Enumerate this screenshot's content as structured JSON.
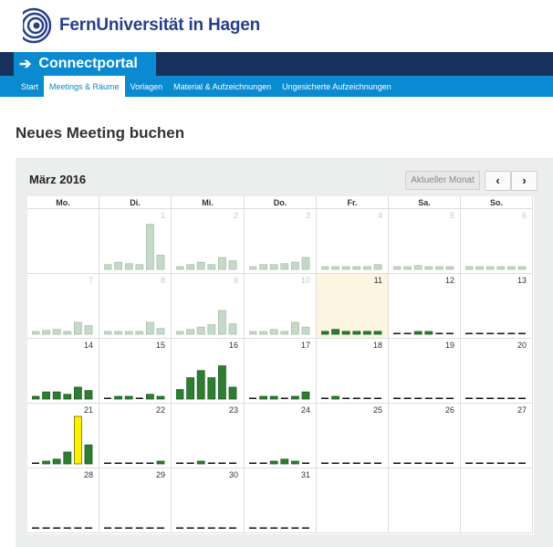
{
  "header": {
    "brand_name": "FernUniversität in Hagen",
    "portal_label": "Connectportal"
  },
  "nav": {
    "items": [
      {
        "label": "Start",
        "active": false
      },
      {
        "label": "Meetings & Räume",
        "active": true
      },
      {
        "label": "Vorlagen",
        "active": false
      },
      {
        "label": "Material & Aufzeichnungen",
        "active": false
      },
      {
        "label": "Ungesicherte Aufzeichnungen",
        "active": false
      }
    ]
  },
  "page": {
    "title": "Neues Meeting buchen"
  },
  "calendar": {
    "month_label": "März 2016",
    "current_month_button": "Aktueller Monat",
    "prev_label": "‹",
    "next_label": "›",
    "weekdays": [
      "Mo.",
      "Di.",
      "Mi.",
      "Do.",
      "Fr.",
      "Sa.",
      "So."
    ],
    "colors": {
      "past_bar": "#c5d9c7",
      "past_border": "#a9bfab",
      "bar": "#2e7d32",
      "bar_border": "#1b5e20",
      "peak_bar": "#fff000",
      "peak_border": "#6b6b00",
      "dash": "#111111"
    },
    "weeks": [
      [
        {
          "num": "",
          "state": "blank",
          "bars": []
        },
        {
          "num": "1",
          "state": "past",
          "bars": [
            0.1,
            0.15,
            0.12,
            0.1,
            0.95,
            0.3
          ]
        },
        {
          "num": "2",
          "state": "past",
          "bars": [
            0.05,
            0.1,
            0.15,
            0.1,
            0.25,
            0.18
          ]
        },
        {
          "num": "3",
          "state": "past",
          "bars": [
            0.05,
            0.1,
            0.1,
            0.12,
            0.15,
            0.25
          ]
        },
        {
          "num": "4",
          "state": "past",
          "bars": [
            0.05,
            0.05,
            0.05,
            0.05,
            0.05,
            0.1
          ]
        },
        {
          "num": "5",
          "state": "past",
          "bars": [
            0.05,
            0.05,
            0.08,
            0.05,
            0.05,
            0.05
          ]
        },
        {
          "num": "6",
          "state": "past",
          "bars": [
            0.05,
            0.05,
            0.05,
            0.05,
            0.05,
            0.05
          ]
        }
      ],
      [
        {
          "num": "7",
          "state": "past",
          "bars": [
            0.05,
            0.08,
            0.1,
            0.05,
            0.25,
            0.18
          ]
        },
        {
          "num": "8",
          "state": "past",
          "bars": [
            0.05,
            0.05,
            0.05,
            0.05,
            0.25,
            0.12
          ]
        },
        {
          "num": "9",
          "state": "past",
          "bars": [
            0.05,
            0.1,
            0.15,
            0.2,
            0.5,
            0.22
          ]
        },
        {
          "num": "10",
          "state": "past",
          "bars": [
            0.05,
            0.05,
            0.1,
            0.05,
            0.25,
            0.15
          ]
        },
        {
          "num": "11",
          "state": "today",
          "bars": [
            0.06,
            0.1,
            0.06,
            0.06,
            0.06,
            0.06
          ]
        },
        {
          "num": "12",
          "state": "future",
          "bars": [
            0,
            0,
            0.05,
            0.05,
            0,
            0
          ]
        },
        {
          "num": "13",
          "state": "future",
          "bars": [
            0,
            0,
            0,
            0,
            0,
            0
          ]
        }
      ],
      [
        {
          "num": "14",
          "state": "future",
          "bars": [
            0.05,
            0.15,
            0.15,
            0.1,
            0.25,
            0.18
          ]
        },
        {
          "num": "15",
          "state": "future",
          "bars": [
            0,
            0.05,
            0.05,
            0,
            0.1,
            0.05
          ]
        },
        {
          "num": "16",
          "state": "future",
          "bars": [
            0.2,
            0.45,
            0.6,
            0.45,
            0.7,
            0.25
          ]
        },
        {
          "num": "17",
          "state": "future",
          "bars": [
            0,
            0.05,
            0.05,
            0,
            0.05,
            0.15
          ]
        },
        {
          "num": "18",
          "state": "future",
          "bars": [
            0,
            0.05,
            0,
            0,
            0,
            0
          ]
        },
        {
          "num": "19",
          "state": "future",
          "bars": [
            0,
            0,
            0,
            0,
            0,
            0
          ]
        },
        {
          "num": "20",
          "state": "future",
          "bars": [
            0,
            0,
            0,
            0,
            0,
            0
          ]
        }
      ],
      [
        {
          "num": "21",
          "state": "future",
          "bars": [
            0,
            0.05,
            0.1,
            0.25,
            1.0,
            0.4
          ],
          "peak_index": 4
        },
        {
          "num": "22",
          "state": "future",
          "bars": [
            0,
            0,
            0,
            0,
            0,
            0.05
          ]
        },
        {
          "num": "23",
          "state": "future",
          "bars": [
            0,
            0,
            0.05,
            0,
            0,
            0
          ]
        },
        {
          "num": "24",
          "state": "future",
          "bars": [
            0,
            0,
            0.05,
            0.1,
            0.05,
            0
          ]
        },
        {
          "num": "25",
          "state": "future",
          "bars": [
            0,
            0,
            0,
            0,
            0,
            0
          ]
        },
        {
          "num": "26",
          "state": "future",
          "bars": [
            0,
            0,
            0,
            0,
            0,
            0
          ]
        },
        {
          "num": "27",
          "state": "future",
          "bars": [
            0,
            0,
            0,
            0,
            0,
            0
          ]
        }
      ],
      [
        {
          "num": "28",
          "state": "future",
          "bars": [
            0,
            0,
            0,
            0,
            0,
            0
          ]
        },
        {
          "num": "29",
          "state": "future",
          "bars": [
            0,
            0,
            0,
            0,
            0,
            0
          ]
        },
        {
          "num": "30",
          "state": "future",
          "bars": [
            0,
            0,
            0,
            0,
            0,
            0
          ]
        },
        {
          "num": "31",
          "state": "future",
          "bars": [
            0,
            0,
            0,
            0,
            0,
            0
          ]
        },
        {
          "num": "",
          "state": "blank",
          "bars": []
        },
        {
          "num": "",
          "state": "blank",
          "bars": []
        },
        {
          "num": "",
          "state": "blank",
          "bars": []
        }
      ]
    ]
  }
}
